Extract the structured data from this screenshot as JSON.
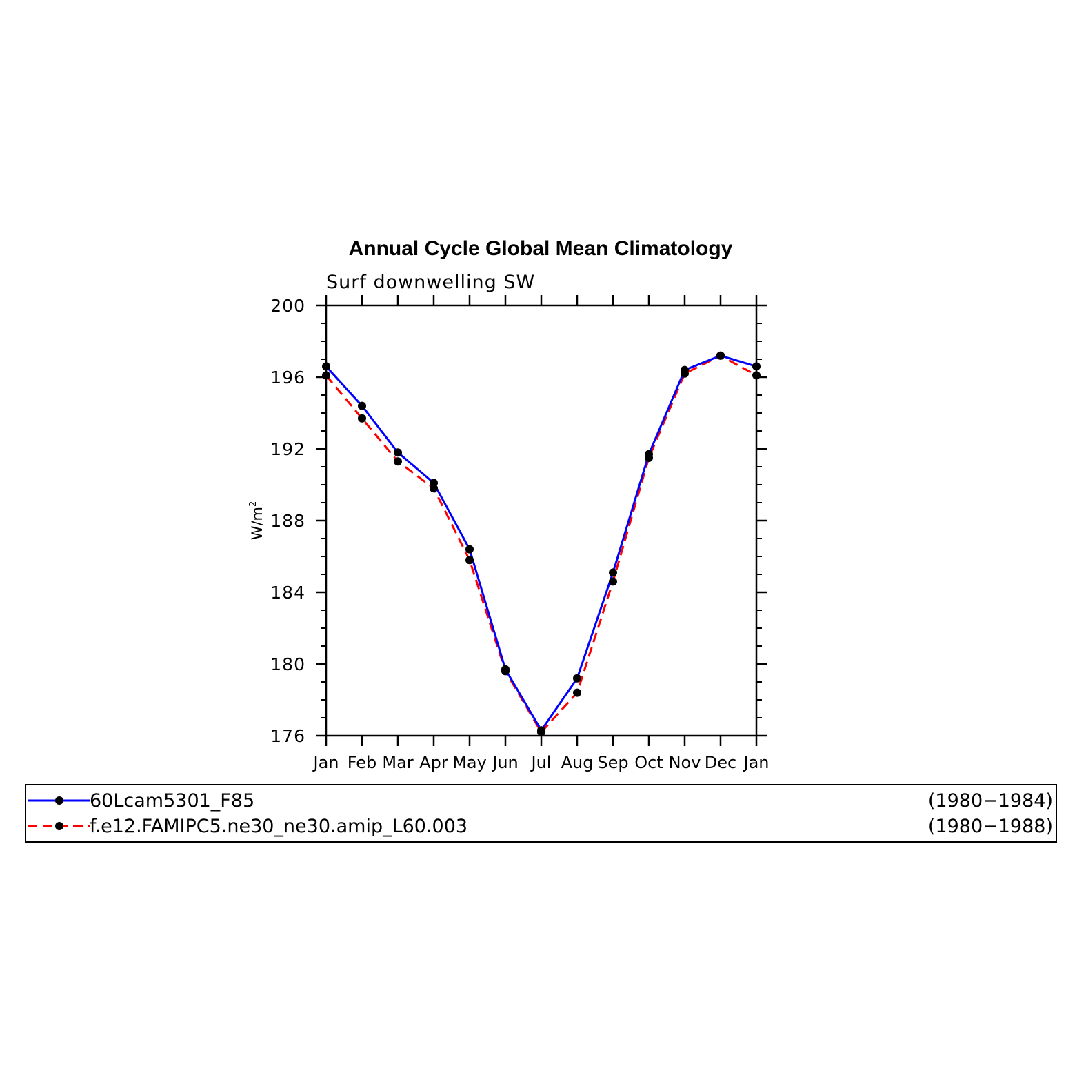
{
  "chart_data": {
    "type": "line",
    "title": "Annual Cycle Global Mean Climatology",
    "subtitle": "Surf downwelling SW",
    "ylabel": "W/m",
    "ylabel_superscript": "2",
    "xlabel": "",
    "x": [
      "Jan",
      "Feb",
      "Mar",
      "Apr",
      "May",
      "Jun",
      "Jul",
      "Aug",
      "Sep",
      "Oct",
      "Nov",
      "Dec",
      "Jan"
    ],
    "ylim": [
      176,
      200
    ],
    "yticks": [
      176,
      180,
      184,
      188,
      192,
      196,
      200
    ],
    "grid": false,
    "legend_position": "bottom",
    "series": [
      {
        "name": "60Lcam5301_F85",
        "period": "(1980−1984)",
        "color": "#0000ff",
        "dash": "solid",
        "values": [
          196.6,
          194.4,
          191.8,
          190.1,
          186.4,
          179.7,
          176.3,
          179.2,
          185.1,
          191.7,
          196.4,
          197.2,
          196.6
        ]
      },
      {
        "name": "f.e12.FAMIPC5.ne30_ne30.amip_L60.003",
        "period": "(1980−1988)",
        "color": "#ff0000",
        "dash": "dashed",
        "values": [
          196.1,
          193.7,
          191.3,
          189.8,
          185.8,
          179.6,
          176.2,
          178.4,
          184.6,
          191.5,
          196.2,
          197.2,
          196.1
        ]
      }
    ]
  }
}
